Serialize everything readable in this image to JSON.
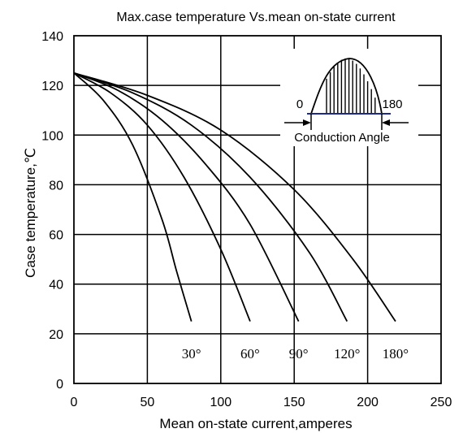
{
  "chart_data": {
    "type": "line",
    "title": "Max.case temperature Vs.mean on-state current",
    "xlabel": "Mean  on-state current,amperes",
    "ylabel": "Case temperature,℃",
    "xlim": [
      0,
      250
    ],
    "ylim": [
      0,
      140
    ],
    "x_ticks": [
      "0",
      "50",
      "100",
      "150",
      "200",
      "250"
    ],
    "y_ticks": [
      "0",
      "20",
      "40",
      "60",
      "80",
      "100",
      "120",
      "140"
    ],
    "grid": true,
    "series": [
      {
        "name": "30°",
        "x": [
          0,
          20,
          40,
          60,
          70,
          80
        ],
        "y": [
          125,
          114,
          96,
          66,
          45,
          25
        ]
      },
      {
        "name": "60°",
        "x": [
          0,
          25,
          50,
          75,
          100,
          120
        ],
        "y": [
          125,
          117,
          104,
          83,
          54,
          25
        ]
      },
      {
        "name": "90°",
        "x": [
          0,
          30,
          60,
          90,
          120,
          153
        ],
        "y": [
          125,
          118,
          106,
          88,
          64,
          25
        ]
      },
      {
        "name": "120°",
        "x": [
          0,
          40,
          80,
          120,
          160,
          186
        ],
        "y": [
          125,
          117,
          104,
          83,
          53,
          25
        ]
      },
      {
        "name": "180°",
        "x": [
          0,
          50,
          100,
          150,
          190,
          219
        ],
        "y": [
          125,
          116,
          102,
          78,
          50,
          25
        ]
      }
    ],
    "inset": {
      "left_label": "0",
      "right_label": "180",
      "caption": "Conduction Angle"
    }
  }
}
